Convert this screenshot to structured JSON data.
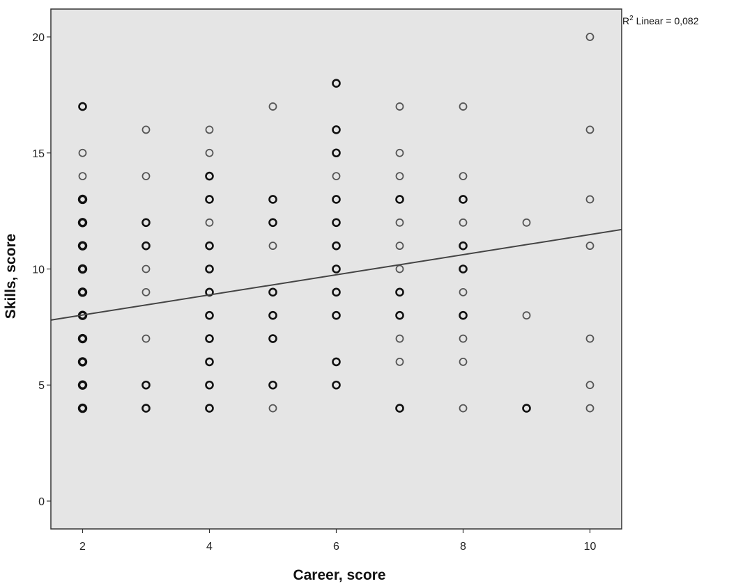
{
  "chart_data": {
    "type": "scatter",
    "title": "",
    "xlabel": "Career, score",
    "ylabel": "Skills, score",
    "xlim": [
      1.5,
      10.5
    ],
    "ylim": [
      -1.2,
      21.2
    ],
    "x_ticks": [
      2,
      4,
      6,
      8,
      10
    ],
    "y_ticks": [
      0,
      5,
      10,
      15,
      20
    ],
    "grid": false,
    "background": "#e5e5e5",
    "point_color": "#222222",
    "line_color": "#444444",
    "fit_line": {
      "x": [
        1.5,
        10.5
      ],
      "y": [
        7.8,
        11.7
      ]
    },
    "annotation": {
      "prefix": "R",
      "sup": "2",
      "text": " Linear = 0,082"
    },
    "points": [
      {
        "x": 2,
        "y": 17,
        "n": 2
      },
      {
        "x": 2,
        "y": 15,
        "n": 1
      },
      {
        "x": 2,
        "y": 14,
        "n": 1
      },
      {
        "x": 2,
        "y": 13,
        "n": 3
      },
      {
        "x": 2,
        "y": 12,
        "n": 3
      },
      {
        "x": 2,
        "y": 11,
        "n": 3
      },
      {
        "x": 2,
        "y": 10,
        "n": 3
      },
      {
        "x": 2,
        "y": 9,
        "n": 3
      },
      {
        "x": 2,
        "y": 8,
        "n": 3
      },
      {
        "x": 2,
        "y": 7,
        "n": 3
      },
      {
        "x": 2,
        "y": 6,
        "n": 3
      },
      {
        "x": 2,
        "y": 5,
        "n": 3
      },
      {
        "x": 2,
        "y": 4,
        "n": 3
      },
      {
        "x": 3,
        "y": 16,
        "n": 1
      },
      {
        "x": 3,
        "y": 14,
        "n": 1
      },
      {
        "x": 3,
        "y": 12,
        "n": 2
      },
      {
        "x": 3,
        "y": 11,
        "n": 2
      },
      {
        "x": 3,
        "y": 10,
        "n": 1
      },
      {
        "x": 3,
        "y": 9,
        "n": 1
      },
      {
        "x": 3,
        "y": 7,
        "n": 1
      },
      {
        "x": 3,
        "y": 5,
        "n": 2
      },
      {
        "x": 3,
        "y": 4,
        "n": 2
      },
      {
        "x": 4,
        "y": 16,
        "n": 1
      },
      {
        "x": 4,
        "y": 15,
        "n": 1
      },
      {
        "x": 4,
        "y": 14,
        "n": 2
      },
      {
        "x": 4,
        "y": 13,
        "n": 2
      },
      {
        "x": 4,
        "y": 12,
        "n": 1
      },
      {
        "x": 4,
        "y": 11,
        "n": 2
      },
      {
        "x": 4,
        "y": 10,
        "n": 2
      },
      {
        "x": 4,
        "y": 9,
        "n": 2
      },
      {
        "x": 4,
        "y": 8,
        "n": 2
      },
      {
        "x": 4,
        "y": 7,
        "n": 2
      },
      {
        "x": 4,
        "y": 6,
        "n": 2
      },
      {
        "x": 4,
        "y": 5,
        "n": 2
      },
      {
        "x": 4,
        "y": 4,
        "n": 2
      },
      {
        "x": 5,
        "y": 17,
        "n": 1
      },
      {
        "x": 5,
        "y": 13,
        "n": 2
      },
      {
        "x": 5,
        "y": 12,
        "n": 2
      },
      {
        "x": 5,
        "y": 11,
        "n": 1
      },
      {
        "x": 5,
        "y": 9,
        "n": 2
      },
      {
        "x": 5,
        "y": 8,
        "n": 2
      },
      {
        "x": 5,
        "y": 7,
        "n": 2
      },
      {
        "x": 5,
        "y": 5,
        "n": 2
      },
      {
        "x": 5,
        "y": 4,
        "n": 1
      },
      {
        "x": 6,
        "y": 18,
        "n": 2
      },
      {
        "x": 6,
        "y": 16,
        "n": 2
      },
      {
        "x": 6,
        "y": 15,
        "n": 2
      },
      {
        "x": 6,
        "y": 14,
        "n": 1
      },
      {
        "x": 6,
        "y": 13,
        "n": 2
      },
      {
        "x": 6,
        "y": 12,
        "n": 2
      },
      {
        "x": 6,
        "y": 11,
        "n": 2
      },
      {
        "x": 6,
        "y": 10,
        "n": 2
      },
      {
        "x": 6,
        "y": 9,
        "n": 2
      },
      {
        "x": 6,
        "y": 8,
        "n": 2
      },
      {
        "x": 6,
        "y": 6,
        "n": 2
      },
      {
        "x": 6,
        "y": 5,
        "n": 2
      },
      {
        "x": 7,
        "y": 17,
        "n": 1
      },
      {
        "x": 7,
        "y": 15,
        "n": 1
      },
      {
        "x": 7,
        "y": 14,
        "n": 1
      },
      {
        "x": 7,
        "y": 13,
        "n": 2
      },
      {
        "x": 7,
        "y": 12,
        "n": 1
      },
      {
        "x": 7,
        "y": 11,
        "n": 1
      },
      {
        "x": 7,
        "y": 10,
        "n": 1
      },
      {
        "x": 7,
        "y": 9,
        "n": 2
      },
      {
        "x": 7,
        "y": 8,
        "n": 2
      },
      {
        "x": 7,
        "y": 7,
        "n": 1
      },
      {
        "x": 7,
        "y": 6,
        "n": 1
      },
      {
        "x": 7,
        "y": 4,
        "n": 2
      },
      {
        "x": 8,
        "y": 17,
        "n": 1
      },
      {
        "x": 8,
        "y": 14,
        "n": 1
      },
      {
        "x": 8,
        "y": 13,
        "n": 2
      },
      {
        "x": 8,
        "y": 12,
        "n": 1
      },
      {
        "x": 8,
        "y": 11,
        "n": 2
      },
      {
        "x": 8,
        "y": 10,
        "n": 2
      },
      {
        "x": 8,
        "y": 9,
        "n": 1
      },
      {
        "x": 8,
        "y": 8,
        "n": 2
      },
      {
        "x": 8,
        "y": 7,
        "n": 1
      },
      {
        "x": 8,
        "y": 6,
        "n": 1
      },
      {
        "x": 8,
        "y": 4,
        "n": 1
      },
      {
        "x": 9,
        "y": 12,
        "n": 1
      },
      {
        "x": 9,
        "y": 8,
        "n": 1
      },
      {
        "x": 9,
        "y": 4,
        "n": 2
      },
      {
        "x": 10,
        "y": 20,
        "n": 1
      },
      {
        "x": 10,
        "y": 16,
        "n": 1
      },
      {
        "x": 10,
        "y": 13,
        "n": 1
      },
      {
        "x": 10,
        "y": 11,
        "n": 1
      },
      {
        "x": 10,
        "y": 7,
        "n": 1
      },
      {
        "x": 10,
        "y": 5,
        "n": 1
      },
      {
        "x": 10,
        "y": 4,
        "n": 1
      }
    ]
  }
}
